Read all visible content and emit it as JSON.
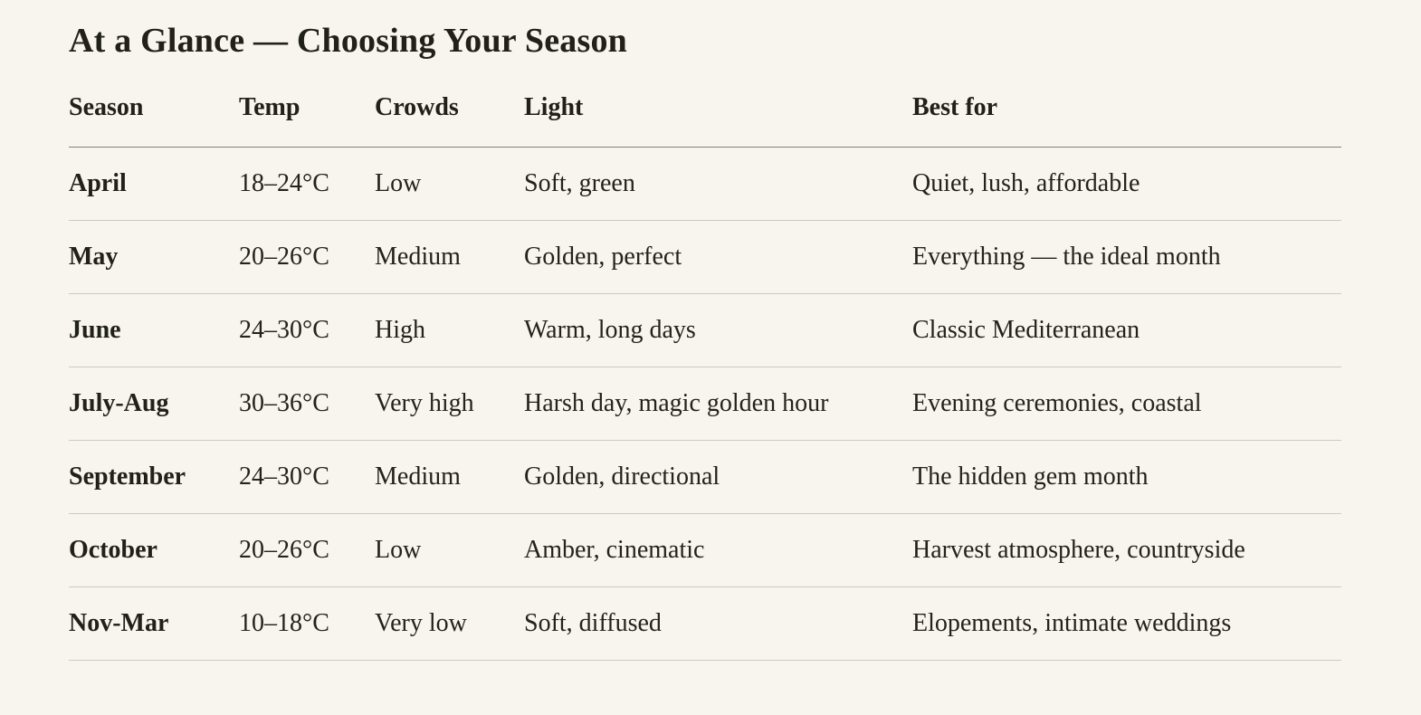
{
  "section": {
    "title": "At a Glance — Choosing Your Season"
  },
  "table": {
    "columns": {
      "season": "Season",
      "temp": "Temp",
      "crowds": "Crowds",
      "light": "Light",
      "best_for": "Best for"
    },
    "rows": [
      {
        "season": "April",
        "temp": "18–24°C",
        "crowds": "Low",
        "light": "Soft, green",
        "best_for": "Quiet, lush, affordable"
      },
      {
        "season": "May",
        "temp": "20–26°C",
        "crowds": "Medium",
        "light": "Golden, perfect",
        "best_for": "Everything — the ideal month"
      },
      {
        "season": "June",
        "temp": "24–30°C",
        "crowds": "High",
        "light": "Warm, long days",
        "best_for": "Classic Mediterranean"
      },
      {
        "season": "July-Aug",
        "temp": "30–36°C",
        "crowds": "Very high",
        "light": "Harsh day, magic golden hour",
        "best_for": "Evening ceremonies, coastal"
      },
      {
        "season": "September",
        "temp": "24–30°C",
        "crowds": "Medium",
        "light": "Golden, directional",
        "best_for": "The hidden gem month"
      },
      {
        "season": "October",
        "temp": "20–26°C",
        "crowds": "Low",
        "light": "Amber, cinematic",
        "best_for": "Harvest atmosphere, countryside"
      },
      {
        "season": "Nov-Mar",
        "temp": "10–18°C",
        "crowds": "Very low",
        "light": "Soft, diffused",
        "best_for": "Elopements, intimate weddings"
      }
    ],
    "colors": {
      "background": "#f7f5ee",
      "text": "#21201a",
      "header_rule": "#83817a",
      "row_rule": "#cccac1"
    }
  }
}
